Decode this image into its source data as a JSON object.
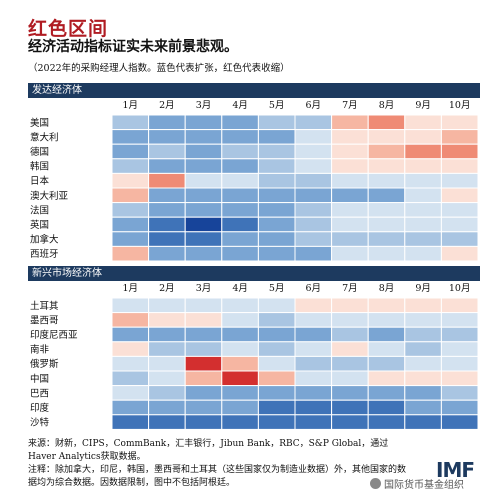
{
  "header": {
    "title": "红色区间",
    "subtitle": "经济活动指标证实未来前景悲观。",
    "note": "（2022年的采购经理人指数。蓝色代表扩张，红色代表收缩）"
  },
  "chart_data": [
    {
      "type": "heatmap",
      "title": "发达经济体",
      "x": [
        "1月",
        "2月",
        "3月",
        "4月",
        "5月",
        "6月",
        "7月",
        "8月",
        "9月",
        "10月"
      ],
      "y": [
        "美国",
        "意大利",
        "德国",
        "韩国",
        "日本",
        "澳大利亚",
        "法国",
        "英国",
        "加拿大",
        "西班牙"
      ],
      "values": [
        [
          2,
          3,
          3,
          3,
          2,
          2,
          -2,
          -3,
          -1,
          -1
        ],
        [
          3,
          3,
          3,
          3,
          3,
          1,
          -1,
          -1,
          -1,
          -2
        ],
        [
          3,
          2,
          3,
          2,
          2,
          1,
          -1,
          -2,
          -3,
          -3
        ],
        [
          2,
          3,
          3,
          3,
          2,
          1,
          -1,
          -1,
          -1,
          -1
        ],
        [
          -1,
          -3,
          1,
          1,
          2,
          2,
          1,
          1,
          1,
          1
        ],
        [
          -2,
          3,
          3,
          3,
          3,
          3,
          3,
          3,
          1,
          -1
        ],
        [
          2,
          3,
          3,
          3,
          3,
          2,
          1,
          1,
          1,
          1
        ],
        [
          3,
          4,
          5,
          4,
          3,
          2,
          1,
          1,
          1,
          1
        ],
        [
          3,
          4,
          4,
          3,
          3,
          2,
          2,
          2,
          2,
          2
        ],
        [
          -2,
          3,
          3,
          3,
          3,
          3,
          1,
          1,
          1,
          -1
        ]
      ],
      "colorscale": "blue = expansion, red = contraction"
    },
    {
      "type": "heatmap",
      "title": "新兴市场经济体",
      "x": [
        "1月",
        "2月",
        "3月",
        "4月",
        "5月",
        "6月",
        "7月",
        "8月",
        "9月",
        "10月"
      ],
      "y": [
        "土耳其",
        "墨西哥",
        "印度尼西亚",
        "南非",
        "俄罗斯",
        "中国",
        "巴西",
        "印度",
        "沙特"
      ],
      "values": [
        [
          1,
          1,
          1,
          1,
          1,
          -1,
          -1,
          -1,
          -1,
          -1
        ],
        [
          -2,
          -1,
          -1,
          1,
          2,
          1,
          1,
          1,
          1,
          1
        ],
        [
          3,
          3,
          3,
          3,
          3,
          3,
          2,
          3,
          2,
          2
        ],
        [
          -1,
          2,
          2,
          1,
          2,
          1,
          -1,
          1,
          2,
          1
        ],
        [
          1,
          1,
          -5,
          -2,
          1,
          2,
          2,
          2,
          1,
          1
        ],
        [
          2,
          1,
          -2,
          -5,
          -2,
          1,
          1,
          -1,
          -1,
          -1
        ],
        [
          1,
          2,
          3,
          3,
          3,
          3,
          3,
          3,
          3,
          2
        ],
        [
          3,
          3,
          3,
          3,
          4,
          4,
          4,
          4,
          3,
          3
        ],
        [
          4,
          4,
          4,
          4,
          4,
          4,
          4,
          4,
          4,
          4
        ]
      ],
      "colorscale": "blue = expansion, red = contraction"
    }
  ],
  "colors": {
    "contraction": [
      "#fbe0d6",
      "#f6b6a2",
      "#ef8b75",
      "#e55848",
      "#d32f2f"
    ],
    "expansion": [
      "#d3e2f0",
      "#a9c5e2",
      "#7aa5d3",
      "#3f73b8",
      "#17449a"
    ]
  },
  "footer": {
    "sources": "来源：财新，CIPS，CommBank，汇丰银行，Jibun Bank，RBC，S&P Global，通过Haver Analytics获取数据。",
    "notes": "注释：除加拿大，印尼，韩国，墨西哥和土耳其（这些国家仅为制造业数据）外，其他国家的数据均为综合数据。因数据限制，图中不包括阿根廷。",
    "logo": "IMF",
    "wechat": "国际货币基金组织"
  }
}
